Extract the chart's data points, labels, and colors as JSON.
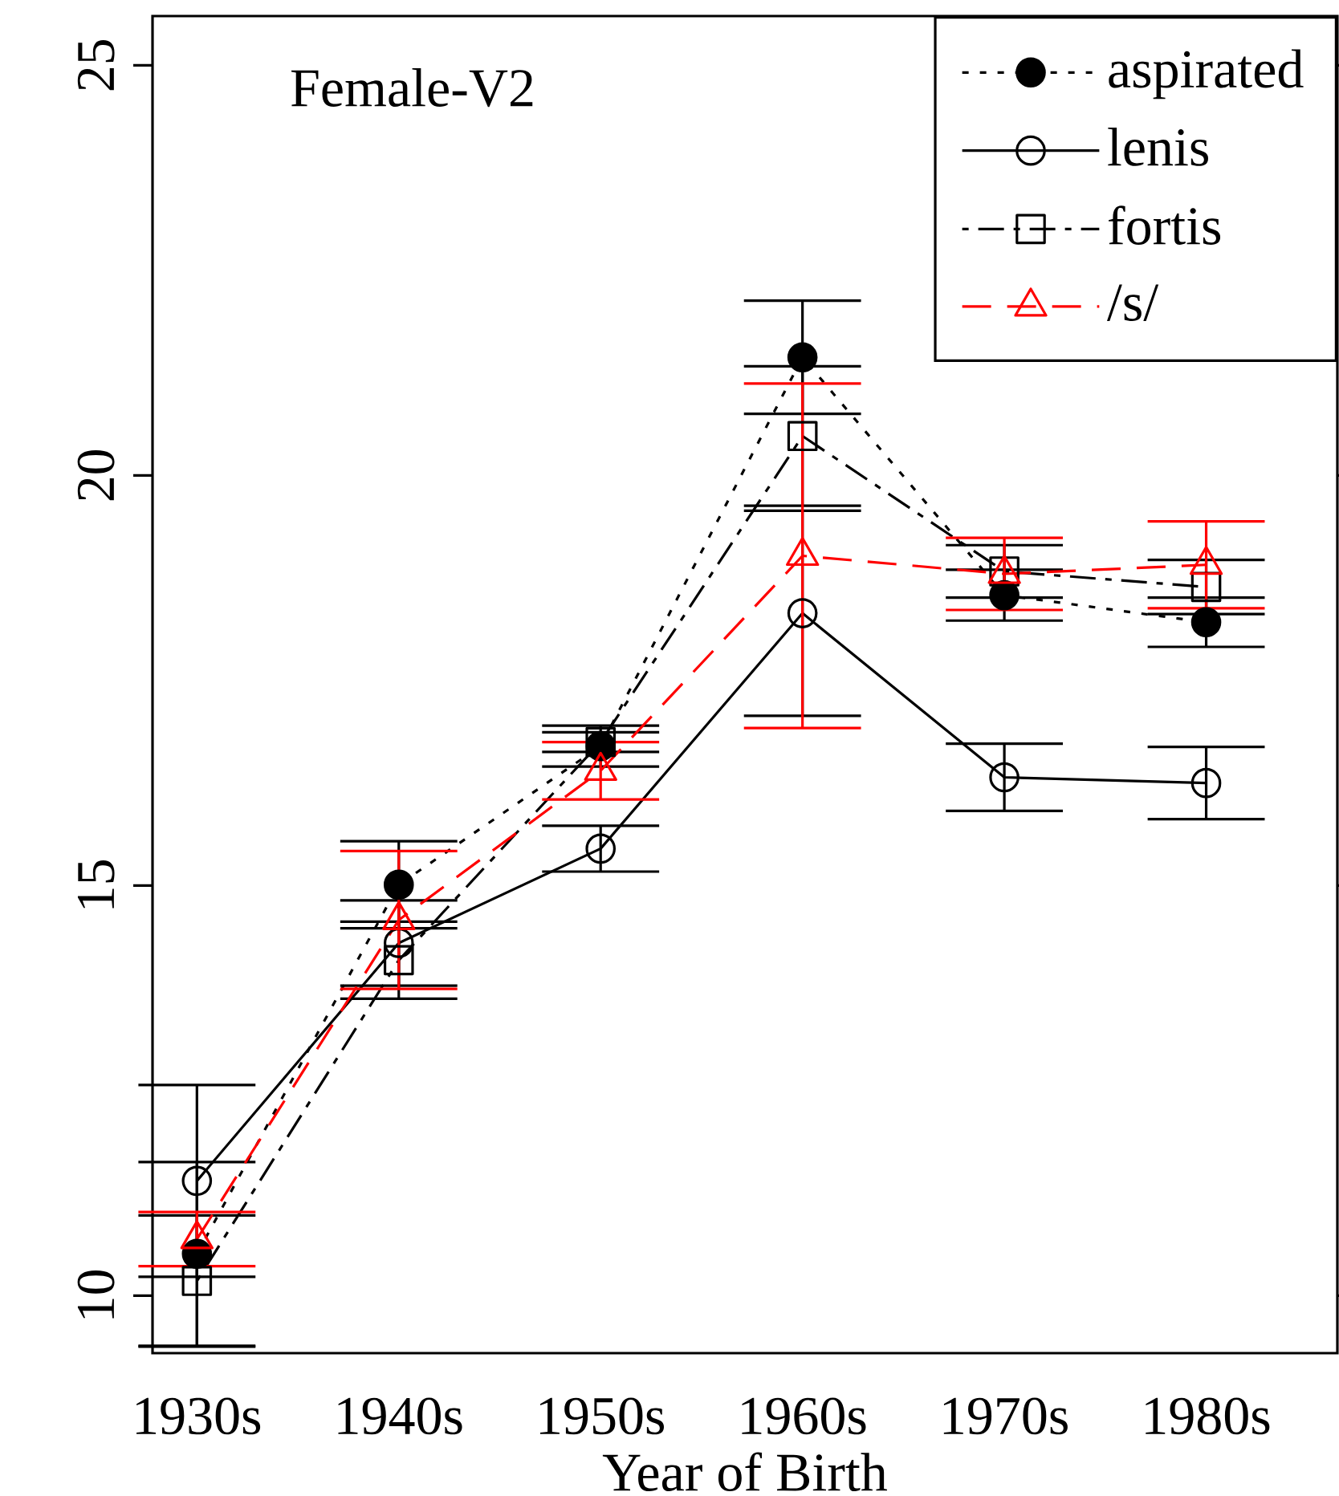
{
  "chart_data": {
    "type": "line",
    "xlabel": "Year of Birth",
    "annotations": [
      "Female-V2"
    ],
    "categories": [
      "1930s",
      "1940s",
      "1950s",
      "1960s",
      "1970s",
      "1980s"
    ],
    "ylim": [
      9.3,
      25.6
    ],
    "yticks": [
      10,
      15,
      20,
      25
    ],
    "legend": "top right",
    "grid": false,
    "series": [
      {
        "name": "aspirated",
        "color": "#000000",
        "marker": "filled_circle",
        "line_style": "dotted",
        "values": [
          10.51,
          15.01,
          16.7,
          21.44,
          18.54,
          18.21
        ],
        "errors": [
          1.12,
          0.53,
          0.25,
          0.69,
          0.31,
          0.3
        ]
      },
      {
        "name": "lenis",
        "color": "#000000",
        "marker": "circle",
        "line_style": "solid",
        "values": [
          11.4,
          14.3,
          15.45,
          18.32,
          16.32,
          16.25
        ],
        "errors": [
          1.17,
          0.52,
          0.28,
          1.25,
          0.41,
          0.44
        ]
      },
      {
        "name": "fortis",
        "color": "#000000",
        "marker": "square",
        "line_style": "dashdot",
        "values": [
          10.18,
          14.09,
          16.75,
          20.48,
          18.83,
          18.64
        ],
        "errors": [
          0.8,
          0.47,
          0.12,
          0.85,
          0.32,
          0.33
        ]
      },
      {
        "name": "/s/",
        "color": "#ff0000",
        "marker": "triangle",
        "line_style": "dashed",
        "values": [
          10.69,
          14.58,
          16.4,
          19.02,
          18.8,
          18.91
        ],
        "errors": [
          0.33,
          0.84,
          0.35,
          2.1,
          0.44,
          0.53
        ]
      }
    ]
  }
}
